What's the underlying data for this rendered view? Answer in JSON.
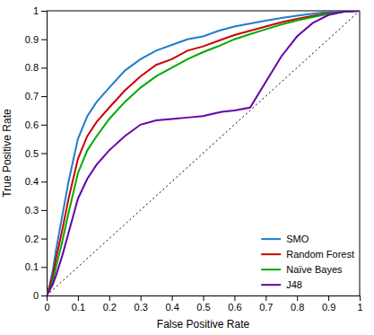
{
  "chart_data": {
    "type": "line",
    "xlabel": "False Positive Rate",
    "ylabel": "True Positive Rate",
    "xlim": [
      0,
      1
    ],
    "ylim": [
      0,
      1
    ],
    "xticks": [
      0,
      0.1,
      0.2,
      0.3,
      0.4,
      0.5,
      0.6,
      0.7,
      0.8,
      0.9,
      1
    ],
    "yticks": [
      0,
      0.1,
      0.2,
      0.3,
      0.4,
      0.5,
      0.6,
      0.7,
      0.8,
      0.9,
      1
    ],
    "grid": false,
    "legend": "lower right",
    "series": [
      {
        "color": "#000000",
        "line_style": "dotted",
        "x": [
          0,
          1
        ],
        "values": [
          0,
          1
        ]
      },
      {
        "name": "SMO",
        "color": "#1e7ecd",
        "x": [
          0.0,
          0.01,
          0.02,
          0.03,
          0.05,
          0.07,
          0.1,
          0.13,
          0.16,
          0.2,
          0.25,
          0.3,
          0.35,
          0.4,
          0.45,
          0.5,
          0.55,
          0.6,
          0.65,
          0.7,
          0.75,
          0.8,
          0.85,
          0.9,
          0.95,
          1.0
        ],
        "values": [
          0.0,
          0.04,
          0.09,
          0.16,
          0.28,
          0.4,
          0.55,
          0.63,
          0.68,
          0.73,
          0.79,
          0.83,
          0.86,
          0.88,
          0.9,
          0.91,
          0.93,
          0.945,
          0.955,
          0.965,
          0.975,
          0.983,
          0.99,
          0.996,
          0.999,
          1.0
        ]
      },
      {
        "name": "Random Forest",
        "color": "#cc0000",
        "x": [
          0.0,
          0.01,
          0.02,
          0.03,
          0.05,
          0.07,
          0.1,
          0.13,
          0.16,
          0.2,
          0.25,
          0.3,
          0.35,
          0.4,
          0.45,
          0.5,
          0.55,
          0.6,
          0.65,
          0.7,
          0.75,
          0.8,
          0.85,
          0.9,
          0.95,
          1.0
        ],
        "values": [
          0.0,
          0.03,
          0.07,
          0.13,
          0.23,
          0.34,
          0.48,
          0.56,
          0.61,
          0.66,
          0.72,
          0.77,
          0.81,
          0.83,
          0.86,
          0.875,
          0.895,
          0.915,
          0.93,
          0.945,
          0.96,
          0.972,
          0.982,
          0.991,
          0.997,
          1.0
        ]
      },
      {
        "name": "Naïve Bayes",
        "color": "#00aa00",
        "x": [
          0.0,
          0.01,
          0.02,
          0.03,
          0.05,
          0.07,
          0.1,
          0.13,
          0.16,
          0.2,
          0.25,
          0.3,
          0.35,
          0.4,
          0.45,
          0.5,
          0.55,
          0.6,
          0.65,
          0.7,
          0.75,
          0.8,
          0.85,
          0.9,
          0.95,
          1.0
        ],
        "values": [
          0.0,
          0.02,
          0.05,
          0.1,
          0.19,
          0.29,
          0.43,
          0.51,
          0.56,
          0.62,
          0.68,
          0.73,
          0.77,
          0.8,
          0.83,
          0.855,
          0.876,
          0.9,
          0.918,
          0.935,
          0.952,
          0.966,
          0.978,
          0.989,
          0.997,
          1.0
        ]
      },
      {
        "name": "J48",
        "color": "#6600aa",
        "x": [
          0.0,
          0.01,
          0.02,
          0.03,
          0.05,
          0.07,
          0.1,
          0.13,
          0.16,
          0.2,
          0.25,
          0.3,
          0.35,
          0.4,
          0.45,
          0.5,
          0.53,
          0.56,
          0.6,
          0.65,
          0.7,
          0.75,
          0.8,
          0.85,
          0.9,
          0.95,
          1.0
        ],
        "values": [
          0.0,
          0.02,
          0.04,
          0.07,
          0.14,
          0.22,
          0.34,
          0.41,
          0.46,
          0.51,
          0.56,
          0.6,
          0.615,
          0.62,
          0.625,
          0.63,
          0.638,
          0.645,
          0.65,
          0.66,
          0.75,
          0.84,
          0.91,
          0.957,
          0.985,
          0.997,
          1.0
        ]
      }
    ]
  }
}
